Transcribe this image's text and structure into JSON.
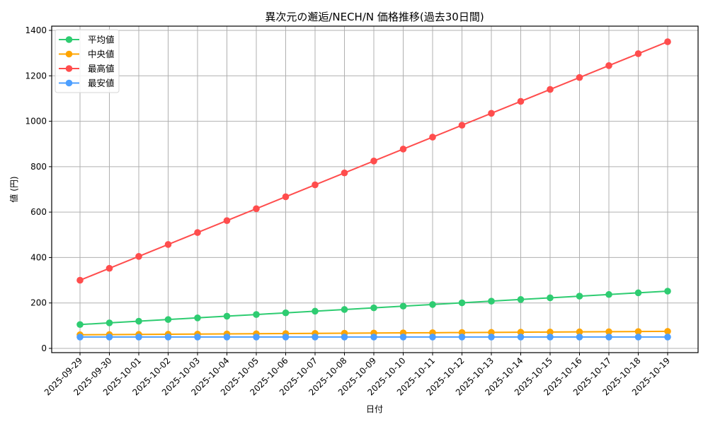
{
  "chart_data": {
    "type": "line",
    "title": "異次元の邂逅/NECH/N 価格推移(過去30日間)",
    "xlabel": "日付",
    "ylabel": "値 (円)",
    "ylim": [
      0,
      1400
    ],
    "yticks": [
      0,
      200,
      400,
      600,
      800,
      1000,
      1200,
      1400
    ],
    "grid": true,
    "legend_position": "upper left",
    "x": [
      "2025-09-29",
      "2025-09-30",
      "2025-10-01",
      "2025-10-02",
      "2025-10-03",
      "2025-10-04",
      "2025-10-05",
      "2025-10-06",
      "2025-10-07",
      "2025-10-08",
      "2025-10-09",
      "2025-10-10",
      "2025-10-11",
      "2025-10-12",
      "2025-10-13",
      "2025-10-14",
      "2025-10-15",
      "2025-10-16",
      "2025-10-17",
      "2025-10-18",
      "2025-10-19"
    ],
    "series": [
      {
        "name": "平均値",
        "color": "#2ecc71",
        "values": [
          105,
          112.4,
          119.7,
          127.1,
          134.4,
          141.8,
          149.1,
          156.5,
          163.8,
          171.2,
          178.5,
          185.9,
          193.2,
          200.6,
          207.9,
          215.3,
          222.6,
          230,
          237.3,
          244.7,
          252
        ]
      },
      {
        "name": "中央値",
        "color": "#ffa500",
        "values": [
          60,
          60.8,
          61.5,
          62.3,
          63,
          63.8,
          64.5,
          65.3,
          66,
          66.8,
          67.5,
          68.3,
          69,
          69.8,
          70.5,
          71.3,
          72,
          72.8,
          73.5,
          74.3,
          75
        ]
      },
      {
        "name": "最高値",
        "color": "#ff4d4d",
        "values": [
          300,
          352.5,
          405,
          457.5,
          510,
          562.5,
          615,
          667.5,
          720,
          772.5,
          825,
          877.5,
          930,
          982.5,
          1035,
          1087.5,
          1140,
          1192.5,
          1245,
          1297.5,
          1350
        ]
      },
      {
        "name": "最安値",
        "color": "#4d9fff",
        "values": [
          50,
          50,
          50,
          50,
          50,
          50,
          50,
          50,
          50,
          50,
          50,
          50,
          50,
          50,
          50,
          50,
          50,
          50,
          50,
          50,
          50
        ]
      }
    ]
  }
}
